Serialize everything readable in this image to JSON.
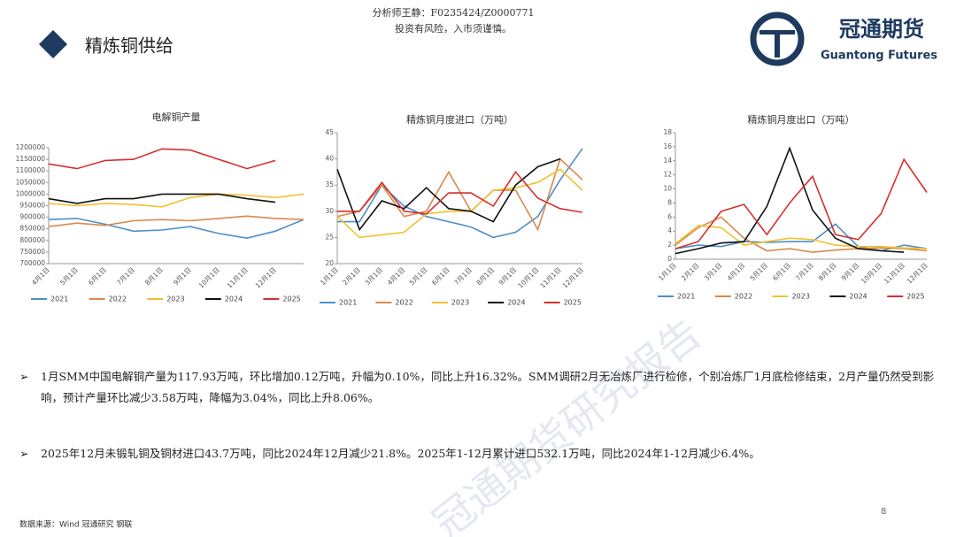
{
  "header": {
    "title": "精炼铜供给",
    "analyst": "分析师王静：F0235424/Z0000771",
    "risk": "投资有风险，入市须谨慎。",
    "logo_cn": "冠通期货",
    "logo_en": "Guantong Futures"
  },
  "watermark": "冠通期货研究报告",
  "chart_data": [
    {
      "type": "line",
      "title": "电解铜产量",
      "categories": [
        "4月1日",
        "5月1日",
        "6月1日",
        "7月1日",
        "8月1日",
        "9月1日",
        "10月1日",
        "11月1日",
        "12月1日",
        null
      ],
      "ylim": [
        700000,
        1200000
      ],
      "yticks": [
        700000,
        750000,
        800000,
        850000,
        900000,
        950000,
        1000000,
        1050000,
        1100000,
        1150000,
        1200000
      ],
      "grid": false,
      "series": [
        {
          "name": "2021",
          "color": "#4e8fc8",
          "values": [
            890000,
            895000,
            870000,
            840000,
            845000,
            860000,
            830000,
            810000,
            840000,
            890000
          ]
        },
        {
          "name": "2022",
          "color": "#d9894e",
          "values": [
            860000,
            875000,
            865000,
            885000,
            890000,
            885000,
            895000,
            905000,
            895000,
            890000
          ]
        },
        {
          "name": "2023",
          "color": "#f2c12e",
          "values": [
            960000,
            950000,
            960000,
            955000,
            945000,
            985000,
            1000000,
            995000,
            985000,
            1000000
          ]
        },
        {
          "name": "2024",
          "color": "#111111",
          "values": [
            980000,
            960000,
            980000,
            980000,
            1000000,
            1000000,
            1000000,
            980000,
            965000,
            null
          ]
        },
        {
          "name": "2025",
          "color": "#d62f2f",
          "values": [
            1130000,
            1110000,
            1145000,
            1150000,
            1195000,
            1190000,
            1150000,
            1110000,
            1145000,
            null
          ]
        }
      ]
    },
    {
      "type": "line",
      "title": "精炼铜月度进口（万吨）",
      "categories": [
        "1月1日",
        "2月1日",
        "3月1日",
        "4月1日",
        "5月1日",
        "6月1日",
        "7月1日",
        "8月1日",
        "9月1日",
        "10月1日",
        "11月1日",
        "12月1日"
      ],
      "ylim": [
        20,
        45
      ],
      "yticks": [
        20,
        25,
        30,
        35,
        40,
        45
      ],
      "grid": false,
      "series": [
        {
          "name": "2021",
          "color": "#4e8fc8",
          "values": [
            28,
            28,
            35,
            31,
            29,
            28,
            27,
            25,
            26,
            29,
            36,
            42
          ]
        },
        {
          "name": "2022",
          "color": "#d9894e",
          "values": [
            29,
            30,
            35,
            29,
            30,
            37.5,
            30,
            34,
            34,
            26.5,
            40,
            36
          ]
        },
        {
          "name": "2023",
          "color": "#f2c12e",
          "values": [
            29,
            25,
            25.5,
            26,
            29.5,
            30,
            30,
            34,
            34.5,
            35.5,
            38,
            34
          ]
        },
        {
          "name": "2024",
          "color": "#111111",
          "values": [
            38,
            26.5,
            32,
            30.5,
            34.5,
            30.5,
            30,
            28,
            35,
            38.5,
            40,
            null
          ]
        },
        {
          "name": "2025",
          "color": "#d62f2f",
          "values": [
            30,
            30,
            35.5,
            30,
            29.5,
            33.5,
            33.5,
            31,
            37.5,
            32.5,
            30.5,
            29.8
          ]
        }
      ]
    },
    {
      "type": "line",
      "title": "精炼铜月度出口（万吨）",
      "categories": [
        "1月1日",
        "2月1日",
        "3月1日",
        "4月1日",
        "5月1日",
        "6月1日",
        "7月1日",
        "8月1日",
        "9月1日",
        "10月1日",
        "11月1日",
        "12月1日"
      ],
      "ylim": [
        0,
        18
      ],
      "yticks": [
        0,
        2,
        4,
        6,
        8,
        10,
        12,
        14,
        16,
        18
      ],
      "grid": false,
      "series": [
        {
          "name": "2021",
          "color": "#4e8fc8",
          "values": [
            1.5,
            2,
            1.8,
            2.5,
            2.4,
            2.5,
            2.5,
            5,
            1.8,
            1.2,
            2,
            1.5
          ]
        },
        {
          "name": "2022",
          "color": "#d9894e",
          "values": [
            2,
            4.5,
            6,
            3,
            1.2,
            1.5,
            1,
            1.3,
            1.5,
            1.6,
            1.5,
            1.2
          ]
        },
        {
          "name": "2023",
          "color": "#f2c12e",
          "values": [
            2.2,
            4.8,
            4.5,
            2,
            2.5,
            3,
            2.8,
            2,
            1.8,
            1.8,
            1.6,
            1.5
          ]
        },
        {
          "name": "2024",
          "color": "#111111",
          "values": [
            0.8,
            1.5,
            2.3,
            2.5,
            7.5,
            15.8,
            7,
            3,
            1.5,
            1.2,
            1,
            null
          ]
        },
        {
          "name": "2025",
          "color": "#d62f2f",
          "values": [
            1.5,
            2.5,
            6.8,
            7.8,
            3.5,
            8,
            11.8,
            3.5,
            2.8,
            6.5,
            14.2,
            9.5
          ]
        }
      ]
    }
  ],
  "bullets": [
    {
      "marker": "➢",
      "text": "1月SMM中国电解铜产量为117.93万吨，环比增加0.12万吨，升幅为0.10%，同比上升16.32%。SMM调研2月无冶炼厂进行检修，个别冶炼厂1月底检修结束，2月产量仍然受到影响，预计产量环比减少3.58万吨，降幅为3.04%，同比上升8.06%。"
    },
    {
      "marker": "➢",
      "text": "2025年12月未锻轧铜及铜材进口43.7万吨，同比2024年12月减少21.8%。2025年1-12月累计进口532.1万吨，同比2024年1-12月减少6.4%。"
    }
  ],
  "footer": {
    "source": "数据来源：Wind 冠通研究 钢联",
    "page": "8"
  }
}
